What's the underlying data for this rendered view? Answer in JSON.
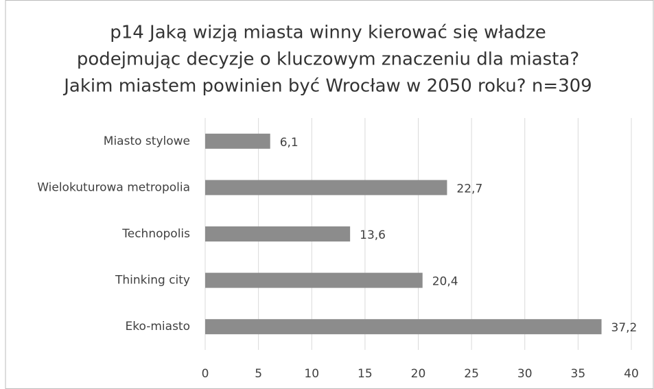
{
  "chart_data": {
    "type": "bar",
    "orientation": "horizontal",
    "title": [
      "p14 Jaką wizją miasta winny kierować się władze",
      "podejmując decyzje o kluczowym znaczeniu dla miasta?",
      "Jakim miastem powinien być Wrocław w 2050 roku? n=309"
    ],
    "categories": [
      "Miasto stylowe",
      "Wielokuturowa metropolia",
      "Technopolis",
      "Thinking city",
      "Eko-miasto"
    ],
    "values": [
      6.1,
      22.7,
      13.6,
      20.4,
      37.2
    ],
    "value_labels": [
      "6,1",
      "22,7",
      "13,6",
      "20,4",
      "37,2"
    ],
    "color": "#8c8c8c",
    "xlim": [
      0,
      40
    ],
    "xticks": [
      0,
      5,
      10,
      15,
      20,
      25,
      30,
      35,
      40
    ],
    "grid": true
  }
}
